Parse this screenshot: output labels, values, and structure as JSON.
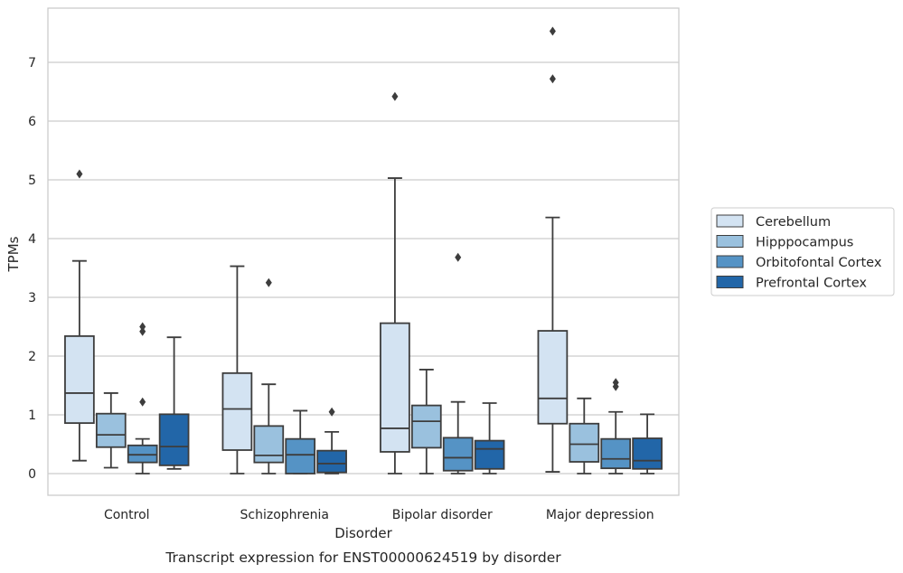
{
  "chart_data": {
    "type": "boxplot",
    "title": "",
    "caption": "Transcript expression for ENST00000624519 by disorder",
    "xlabel": "Disorder",
    "ylabel": "TPMs",
    "ylim": [
      -0.35,
      7.9
    ],
    "yticks": [
      0,
      1,
      2,
      3,
      4,
      5,
      6,
      7
    ],
    "grid": "horizontal",
    "legend_position": "right",
    "categories": [
      "Control",
      "Schizophrenia",
      "Bipolar disorder",
      "Major depression"
    ],
    "series": [
      {
        "name": "Cerebellum",
        "color": "#d3e3f2",
        "boxes": [
          {
            "whislo": 0.22,
            "q1": 0.86,
            "med": 1.37,
            "q3": 2.34,
            "whishi": 3.62,
            "fliers": [
              5.1
            ]
          },
          {
            "whislo": 0.0,
            "q1": 0.4,
            "med": 1.1,
            "q3": 1.71,
            "whishi": 3.53,
            "fliers": []
          },
          {
            "whislo": 0.0,
            "q1": 0.37,
            "med": 0.77,
            "q3": 2.56,
            "whishi": 5.03,
            "fliers": [
              6.42
            ]
          },
          {
            "whislo": 0.03,
            "q1": 0.85,
            "med": 1.28,
            "q3": 2.43,
            "whishi": 4.36,
            "fliers": [
              6.72,
              7.53
            ]
          }
        ]
      },
      {
        "name": "Hipppocampus",
        "color": "#9ac1de",
        "boxes": [
          {
            "whislo": 0.1,
            "q1": 0.45,
            "med": 0.66,
            "q3": 1.02,
            "whishi": 1.37,
            "fliers": []
          },
          {
            "whislo": 0.0,
            "q1": 0.19,
            "med": 0.31,
            "q3": 0.81,
            "whishi": 1.52,
            "fliers": [
              3.25
            ]
          },
          {
            "whislo": 0.0,
            "q1": 0.44,
            "med": 0.89,
            "q3": 1.16,
            "whishi": 1.77,
            "fliers": []
          },
          {
            "whislo": 0.0,
            "q1": 0.2,
            "med": 0.5,
            "q3": 0.85,
            "whishi": 1.28,
            "fliers": []
          }
        ]
      },
      {
        "name": "Orbitofontal Cortex",
        "color": "#5593c5",
        "boxes": [
          {
            "whislo": 0.0,
            "q1": 0.19,
            "med": 0.32,
            "q3": 0.48,
            "whishi": 0.59,
            "fliers": [
              1.22,
              2.42,
              2.5
            ]
          },
          {
            "whislo": 0.0,
            "q1": 0.0,
            "med": 0.32,
            "q3": 0.59,
            "whishi": 1.07,
            "fliers": []
          },
          {
            "whislo": 0.0,
            "q1": 0.05,
            "med": 0.27,
            "q3": 0.61,
            "whishi": 1.22,
            "fliers": [
              3.68
            ]
          },
          {
            "whislo": 0.0,
            "q1": 0.09,
            "med": 0.25,
            "q3": 0.59,
            "whishi": 1.05,
            "fliers": [
              1.48,
              1.55
            ]
          }
        ]
      },
      {
        "name": "Prefrontal Cortex",
        "color": "#2266a8",
        "boxes": [
          {
            "whislo": 0.08,
            "q1": 0.14,
            "med": 0.46,
            "q3": 1.01,
            "whishi": 2.32,
            "fliers": []
          },
          {
            "whislo": 0.0,
            "q1": 0.02,
            "med": 0.17,
            "q3": 0.39,
            "whishi": 0.71,
            "fliers": [
              1.05
            ]
          },
          {
            "whislo": 0.0,
            "q1": 0.08,
            "med": 0.42,
            "q3": 0.56,
            "whishi": 1.2,
            "fliers": []
          },
          {
            "whislo": 0.0,
            "q1": 0.08,
            "med": 0.22,
            "q3": 0.6,
            "whishi": 1.01,
            "fliers": []
          }
        ]
      }
    ]
  }
}
